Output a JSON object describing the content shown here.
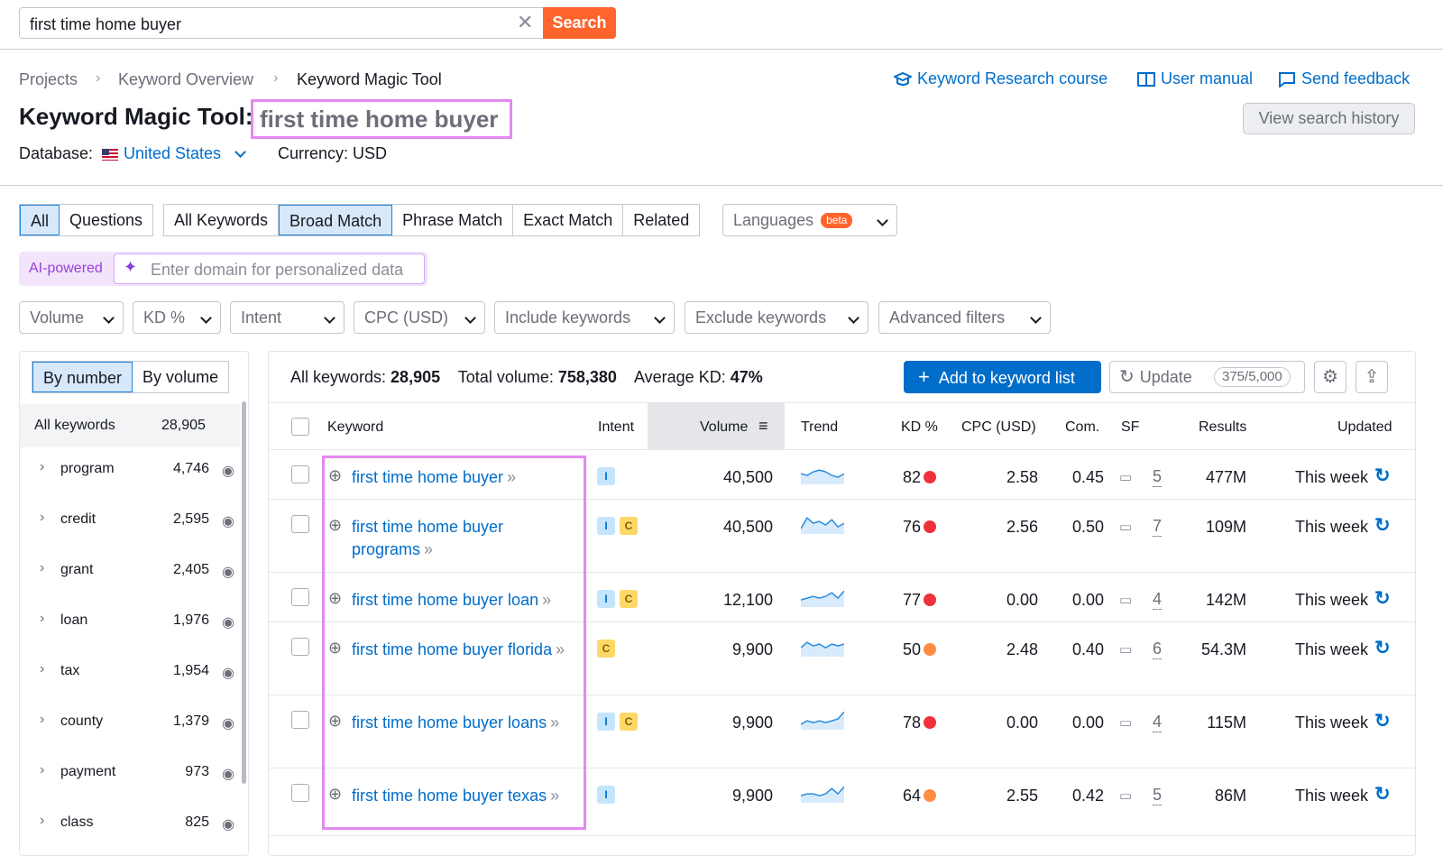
{
  "search": {
    "value": "first time home buyer",
    "clear": "✕",
    "button": "Search"
  },
  "breadcrumb": [
    "Projects",
    "Keyword Overview",
    "Keyword Magic Tool"
  ],
  "top_links": {
    "course": "Keyword Research course",
    "manual": "User manual",
    "feedback": "Send feedback"
  },
  "title": {
    "prefix": "Keyword Magic Tool:",
    "term": "first time home buyer"
  },
  "view_history": "View search history",
  "database": {
    "label": "Database:",
    "value": "United States",
    "currency": "Currency: USD"
  },
  "question_tabs": [
    "All",
    "Questions"
  ],
  "match_tabs": [
    "All Keywords",
    "Broad Match",
    "Phrase Match",
    "Exact Match",
    "Related"
  ],
  "languages": {
    "label": "Languages",
    "badge": "beta"
  },
  "ai": {
    "label": "AI-powered",
    "placeholder": "Enter domain for personalized data"
  },
  "filters": [
    "Volume",
    "KD %",
    "Intent",
    "CPC (USD)",
    "Include keywords",
    "Exclude keywords",
    "Advanced filters"
  ],
  "sidebar": {
    "toggle": [
      "By number",
      "By volume"
    ],
    "all_label": "All keywords",
    "all_count": "28,905",
    "groups": [
      {
        "name": "program",
        "count": "4,746"
      },
      {
        "name": "credit",
        "count": "2,595"
      },
      {
        "name": "grant",
        "count": "2,405"
      },
      {
        "name": "loan",
        "count": "1,976"
      },
      {
        "name": "tax",
        "count": "1,954"
      },
      {
        "name": "county",
        "count": "1,379"
      },
      {
        "name": "payment",
        "count": "973"
      },
      {
        "name": "class",
        "count": "825"
      }
    ]
  },
  "summary": {
    "all_label": "All keywords:",
    "all_value": "28,905",
    "vol_label": "Total volume:",
    "vol_value": "758,380",
    "kd_label": "Average KD:",
    "kd_value": "47%"
  },
  "actions": {
    "add": "Add to keyword list",
    "update": "Update",
    "update_count": "375/5,000"
  },
  "columns": [
    "Keyword",
    "Intent",
    "Volume",
    "Trend",
    "KD %",
    "CPC (USD)",
    "Com.",
    "SF",
    "Results",
    "Updated"
  ],
  "colors": {
    "accent": "#006dca",
    "orange": "#ff642d",
    "kd_red": "#f0313a",
    "kd_orange": "#ff8c43",
    "highlight": "#e28aef"
  },
  "rows": [
    {
      "kw1": "first time home buyer",
      "kw2": "",
      "intents": [
        "I"
      ],
      "volume": "40,500",
      "trend": [
        0.6,
        0.5,
        0.7,
        0.8,
        0.7,
        0.5,
        0.4,
        0.6
      ],
      "kd": "82",
      "kd_color": "#f0313a",
      "cpc": "2.58",
      "com": "0.45",
      "sf": "5",
      "results": "477M",
      "updated": "This week"
    },
    {
      "kw1": "first time home buyer",
      "kw2": "programs",
      "intents": [
        "I",
        "C"
      ],
      "volume": "40,500",
      "trend": [
        0.3,
        0.9,
        0.6,
        0.7,
        0.5,
        0.8,
        0.4,
        0.6
      ],
      "kd": "76",
      "kd_color": "#f0313a",
      "cpc": "2.56",
      "com": "0.50",
      "sf": "7",
      "results": "109M",
      "updated": "This week"
    },
    {
      "kw1": "first time home buyer loan",
      "kw2": "",
      "intents": [
        "I",
        "C"
      ],
      "volume": "12,100",
      "trend": [
        0.4,
        0.5,
        0.6,
        0.5,
        0.6,
        0.8,
        0.5,
        0.9
      ],
      "kd": "77",
      "kd_color": "#f0313a",
      "cpc": "0.00",
      "com": "0.00",
      "sf": "4",
      "results": "142M",
      "updated": "This week"
    },
    {
      "kw1": "first time home buyer florida",
      "kw2": "",
      "intents": [
        "C"
      ],
      "volume": "9,900",
      "trend": [
        0.5,
        0.8,
        0.6,
        0.7,
        0.5,
        0.7,
        0.6,
        0.7
      ],
      "kd": "50",
      "kd_color": "#ff8c43",
      "cpc": "2.48",
      "com": "0.40",
      "sf": "6",
      "results": "54.3M",
      "updated": "This week"
    },
    {
      "kw1": "first time home buyer loans",
      "kw2": "",
      "intents": [
        "I",
        "C"
      ],
      "volume": "9,900",
      "trend": [
        0.3,
        0.5,
        0.4,
        0.5,
        0.4,
        0.5,
        0.6,
        1.0
      ],
      "kd": "78",
      "kd_color": "#f0313a",
      "cpc": "0.00",
      "com": "0.00",
      "sf": "4",
      "results": "115M",
      "updated": "This week"
    },
    {
      "kw1": "first time home buyer texas",
      "kw2": "",
      "intents": [
        "I"
      ],
      "volume": "9,900",
      "trend": [
        0.4,
        0.5,
        0.5,
        0.4,
        0.5,
        0.8,
        0.5,
        0.9
      ],
      "kd": "64",
      "kd_color": "#ff8c43",
      "cpc": "2.55",
      "com": "0.42",
      "sf": "5",
      "results": "86M",
      "updated": "This week"
    }
  ]
}
